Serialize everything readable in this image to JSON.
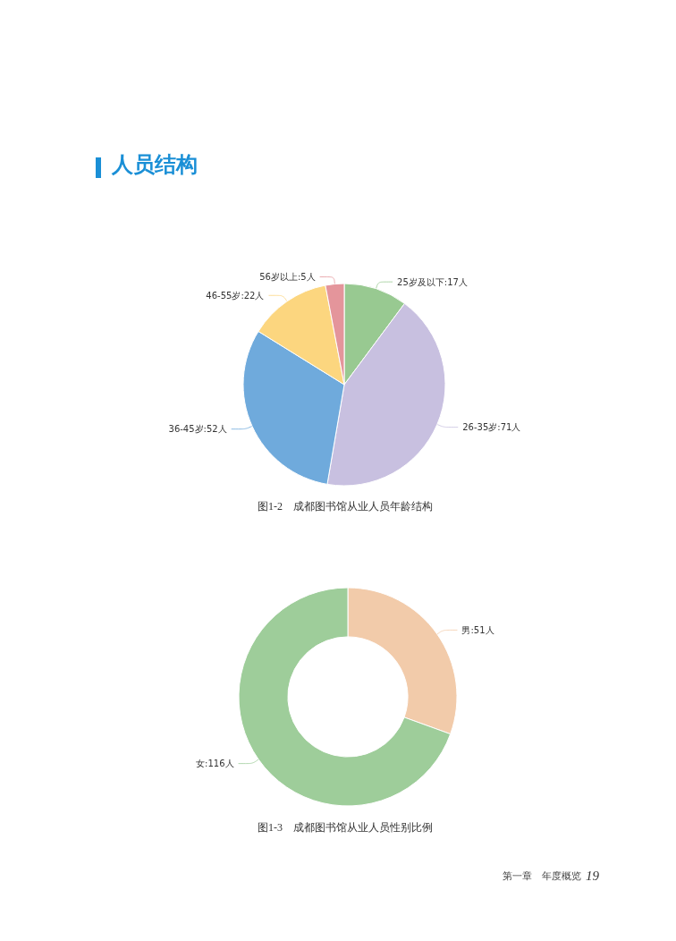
{
  "chart_data": [
    {
      "type": "pie",
      "title": "图1-2　成都图书馆从业人员年龄结构",
      "categories": [
        "25岁及以下",
        "26-35岁",
        "36-45岁",
        "46-55岁",
        "56岁以上"
      ],
      "values": [
        17,
        71,
        52,
        22,
        5
      ],
      "colors": [
        "#98c991",
        "#c8c0e0",
        "#6faadc",
        "#fcd67f",
        "#e4959b"
      ],
      "value_labels": [
        "17人",
        "71人",
        "52人",
        "22人",
        "5人"
      ],
      "annotations": [
        "人员结构"
      ]
    },
    {
      "type": "donut",
      "title": "图1-3　成都图书馆从业人员性别比例",
      "categories": [
        "男",
        "女"
      ],
      "values": [
        51,
        116
      ],
      "colors": [
        "#f2cbaa",
        "#9ecd9a"
      ],
      "value_labels": [
        "51人",
        "116人"
      ],
      "annotations": [
        "第一章　年度概览",
        "19"
      ]
    }
  ]
}
